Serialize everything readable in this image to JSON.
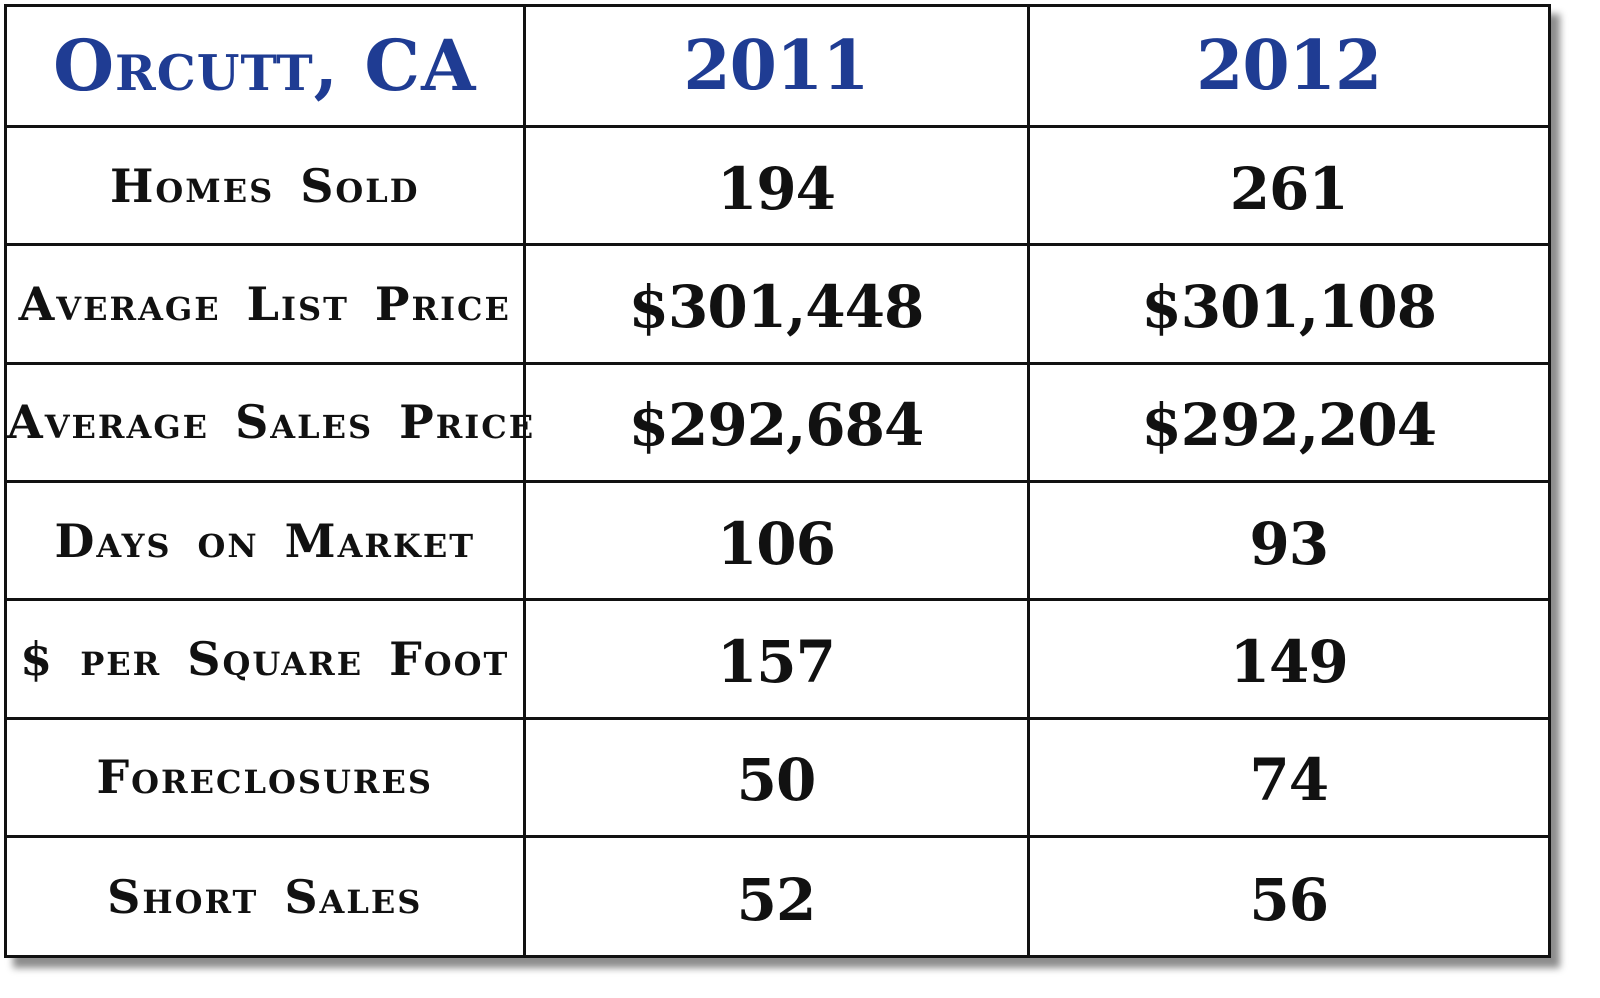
{
  "chart_data": {
    "type": "table",
    "title": "Orcutt, CA",
    "columns": [
      "2011",
      "2012"
    ],
    "rows": [
      {
        "label": "Homes Sold",
        "values": [
          "194",
          "261"
        ]
      },
      {
        "label": "Average List Price",
        "values": [
          "$301,448",
          "$301,108"
        ]
      },
      {
        "label": "Average Sales Price",
        "values": [
          "$292,684",
          "$292,204"
        ]
      },
      {
        "label": "Days on Market",
        "values": [
          "106",
          "93"
        ]
      },
      {
        "label": "$ per Square Foot",
        "values": [
          "157",
          "149"
        ]
      },
      {
        "label": "Foreclosures",
        "values": [
          "50",
          "74"
        ]
      },
      {
        "label": "Short Sales",
        "values": [
          "52",
          "56"
        ]
      }
    ]
  },
  "colors": {
    "header_text": "#1f3c93",
    "body_text": "#111111",
    "grid_lines": "#111111",
    "background": "#ffffff"
  }
}
